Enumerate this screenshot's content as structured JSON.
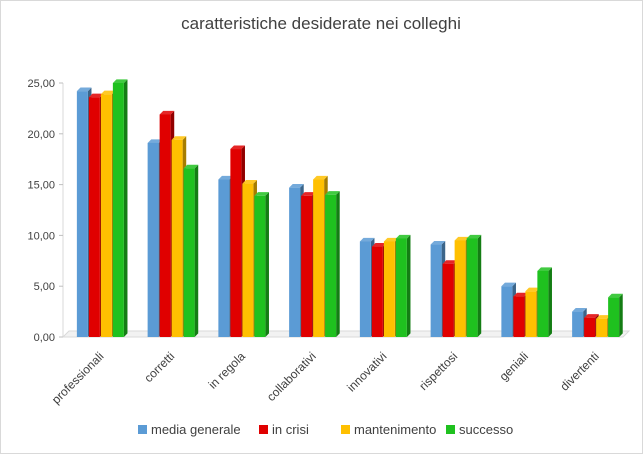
{
  "chart_data": {
    "type": "bar",
    "title": "caratteristiche desiderate nei colleghi",
    "categories": [
      "professionali",
      "corretti",
      "in regola",
      "collaborativi",
      "innovativi",
      "rispettosi",
      "geniali",
      "divertenti"
    ],
    "series": [
      {
        "name": "media generale",
        "color": "#5b9bd5",
        "values": [
          24.2,
          19.1,
          15.5,
          14.7,
          9.4,
          9.1,
          5.0,
          2.5
        ]
      },
      {
        "name": "in crisi",
        "color": "#e00000",
        "values": [
          23.6,
          21.9,
          18.5,
          13.9,
          8.9,
          7.2,
          4.0,
          1.9
        ]
      },
      {
        "name": "mantenimento",
        "color": "#ffc000",
        "values": [
          23.9,
          19.4,
          15.1,
          15.5,
          9.4,
          9.5,
          4.5,
          1.8
        ]
      },
      {
        "name": "successo",
        "color": "#1fc11f",
        "values": [
          25.0,
          16.6,
          13.9,
          14.0,
          9.7,
          9.7,
          6.5,
          3.9
        ]
      }
    ],
    "y_ticks": [
      "0,00",
      "5,00",
      "10,00",
      "15,00",
      "20,00",
      "25,00"
    ],
    "ylim": [
      0,
      25
    ],
    "grid": false,
    "legend_position": "bottom"
  }
}
